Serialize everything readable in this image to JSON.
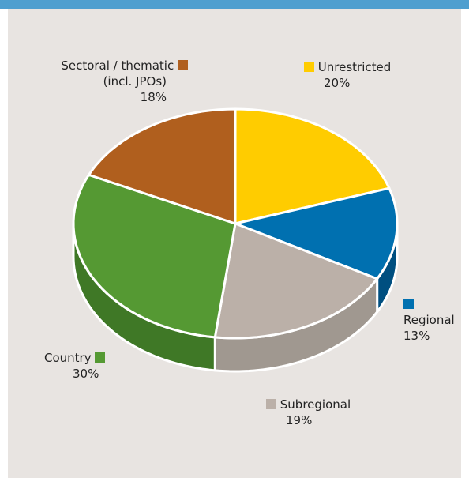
{
  "chart_data": {
    "type": "pie",
    "style": "3d",
    "slices": [
      {
        "label": "Unrestricted",
        "percent_text": "20%",
        "value": 20,
        "color": "#ffcc00",
        "side_color": "#c9a000"
      },
      {
        "label": "Regional",
        "percent_text": "13%",
        "value": 13,
        "color": "#0070b0",
        "side_color": "#004f80"
      },
      {
        "label": "Subregional",
        "percent_text": "19%",
        "value": 19,
        "color": "#bbb0a8",
        "side_color": "#a09890"
      },
      {
        "label": "Country",
        "percent_text": "30%",
        "value": 30,
        "color": "#559933",
        "side_color": "#3f7826"
      },
      {
        "label_lines": [
          "Sectoral / thematic",
          "(incl. JPOs)"
        ],
        "percent_text": "18%",
        "value": 18,
        "color": "#b05f1e",
        "side_color": "#874815"
      }
    ]
  },
  "colors": {
    "header_bar": "#4f9fcf",
    "panel_background": "#e8e4e1"
  }
}
